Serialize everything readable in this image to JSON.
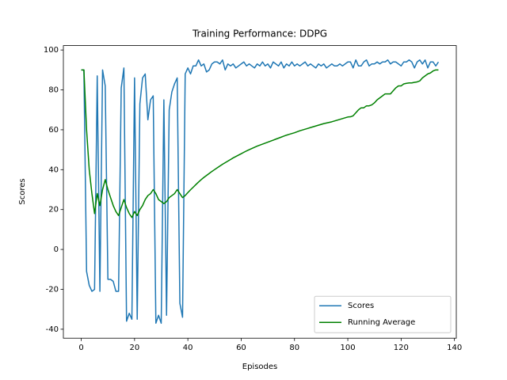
{
  "chart_data": {
    "type": "line",
    "title": "Training Performance: DDPG",
    "x_label": "Episodes",
    "y_label": "Scores",
    "x": [
      0,
      1,
      2,
      3,
      4,
      5,
      6,
      7,
      8,
      9,
      10,
      11,
      12,
      13,
      14,
      15,
      16,
      17,
      18,
      19,
      20,
      21,
      22,
      23,
      24,
      25,
      26,
      27,
      28,
      29,
      30,
      31,
      32,
      33,
      34,
      35,
      36,
      37,
      38,
      39,
      40,
      41,
      42,
      43,
      44,
      45,
      46,
      47,
      48,
      49,
      50,
      51,
      52,
      53,
      54,
      55,
      56,
      57,
      58,
      59,
      60,
      61,
      62,
      63,
      64,
      65,
      66,
      67,
      68,
      69,
      70,
      71,
      72,
      73,
      74,
      75,
      76,
      77,
      78,
      79,
      80,
      81,
      82,
      83,
      84,
      85,
      86,
      87,
      88,
      89,
      90,
      91,
      92,
      93,
      94,
      95,
      96,
      97,
      98,
      99,
      100,
      101,
      102,
      103,
      104,
      105,
      106,
      107,
      108,
      109,
      110,
      111,
      112,
      113,
      114,
      115,
      116,
      117,
      118,
      119,
      120,
      121,
      122,
      123,
      124,
      125,
      126,
      127,
      128,
      129,
      130,
      131,
      132,
      133,
      134
    ],
    "series": [
      {
        "name": "Scores",
        "color": "#1f77b4",
        "values": [
          90,
          90,
          -11,
          -18,
          -21,
          -20,
          87,
          -21,
          90,
          82,
          -15,
          -15,
          -16,
          -21,
          -21,
          81,
          91,
          -36,
          -32,
          -35,
          86,
          -35,
          73,
          86,
          88,
          65,
          75,
          77,
          -37,
          -33,
          -37,
          75,
          -33,
          70,
          79,
          83,
          86,
          -27,
          -34,
          88,
          91,
          88,
          92,
          92,
          95,
          92,
          93,
          89,
          90,
          93,
          94,
          94,
          93,
          95,
          90,
          93,
          92,
          93,
          91,
          92,
          93,
          94,
          92,
          93,
          92,
          91,
          93,
          92,
          94,
          92,
          93,
          91,
          94,
          93,
          92,
          94,
          91,
          93,
          92,
          94,
          92,
          93,
          92,
          93,
          94,
          92,
          93,
          92,
          91,
          93,
          92,
          93,
          91,
          92,
          93,
          92,
          92,
          93,
          92,
          93,
          94,
          94,
          91,
          95,
          92,
          92,
          94,
          95,
          92,
          93,
          93,
          94,
          93,
          94,
          94,
          95,
          93,
          94,
          94,
          93,
          92,
          94,
          94,
          95,
          94,
          91,
          94,
          95,
          93,
          95,
          91,
          94,
          94,
          92,
          94
        ]
      },
      {
        "name": "Running Average",
        "color": "#008000",
        "values": [
          90,
          90,
          60,
          40,
          28,
          18,
          28,
          22,
          30,
          35,
          30,
          26,
          22,
          19,
          17,
          21,
          25,
          21,
          18,
          16,
          19,
          17,
          20,
          22,
          25,
          27,
          28,
          30,
          28,
          25,
          24,
          23,
          24,
          26,
          27,
          28,
          30,
          28,
          26,
          27,
          28.5,
          29.9,
          31.2,
          32.5,
          33.8,
          35,
          36.1,
          37.1,
          38.1,
          39.1,
          40,
          40.9,
          41.8,
          42.7,
          43.5,
          44.3,
          45.1,
          45.9,
          46.6,
          47.3,
          48,
          48.7,
          49.4,
          50,
          50.6,
          51.2,
          51.8,
          52.3,
          52.8,
          53.3,
          53.8,
          54.3,
          54.8,
          55.3,
          55.8,
          56.3,
          56.8,
          57.3,
          57.7,
          58.1,
          58.5,
          59,
          59.5,
          59.9,
          60.3,
          60.7,
          61.1,
          61.5,
          61.9,
          62.3,
          62.7,
          63.1,
          63.4,
          63.7,
          64,
          64.4,
          64.8,
          65.2,
          65.6,
          66,
          66.4,
          66.5,
          67,
          68.5,
          70,
          71,
          71,
          72,
          72,
          72.5,
          73.5,
          75,
          76,
          77,
          78,
          78,
          78,
          79.5,
          81,
          82,
          82,
          83,
          83.3,
          83.5,
          83.5,
          83.8,
          84,
          84.5,
          86,
          87,
          88,
          88.5,
          89.5,
          90,
          90
        ]
      }
    ],
    "xlim": [
      -6.7,
      140.7
    ],
    "ylim": [
      -44.5,
      102.2
    ],
    "xticks": [
      0,
      20,
      40,
      60,
      80,
      100,
      120,
      140
    ],
    "yticks": [
      -40,
      -20,
      0,
      20,
      40,
      60,
      80,
      100
    ],
    "legend": "lower right"
  }
}
